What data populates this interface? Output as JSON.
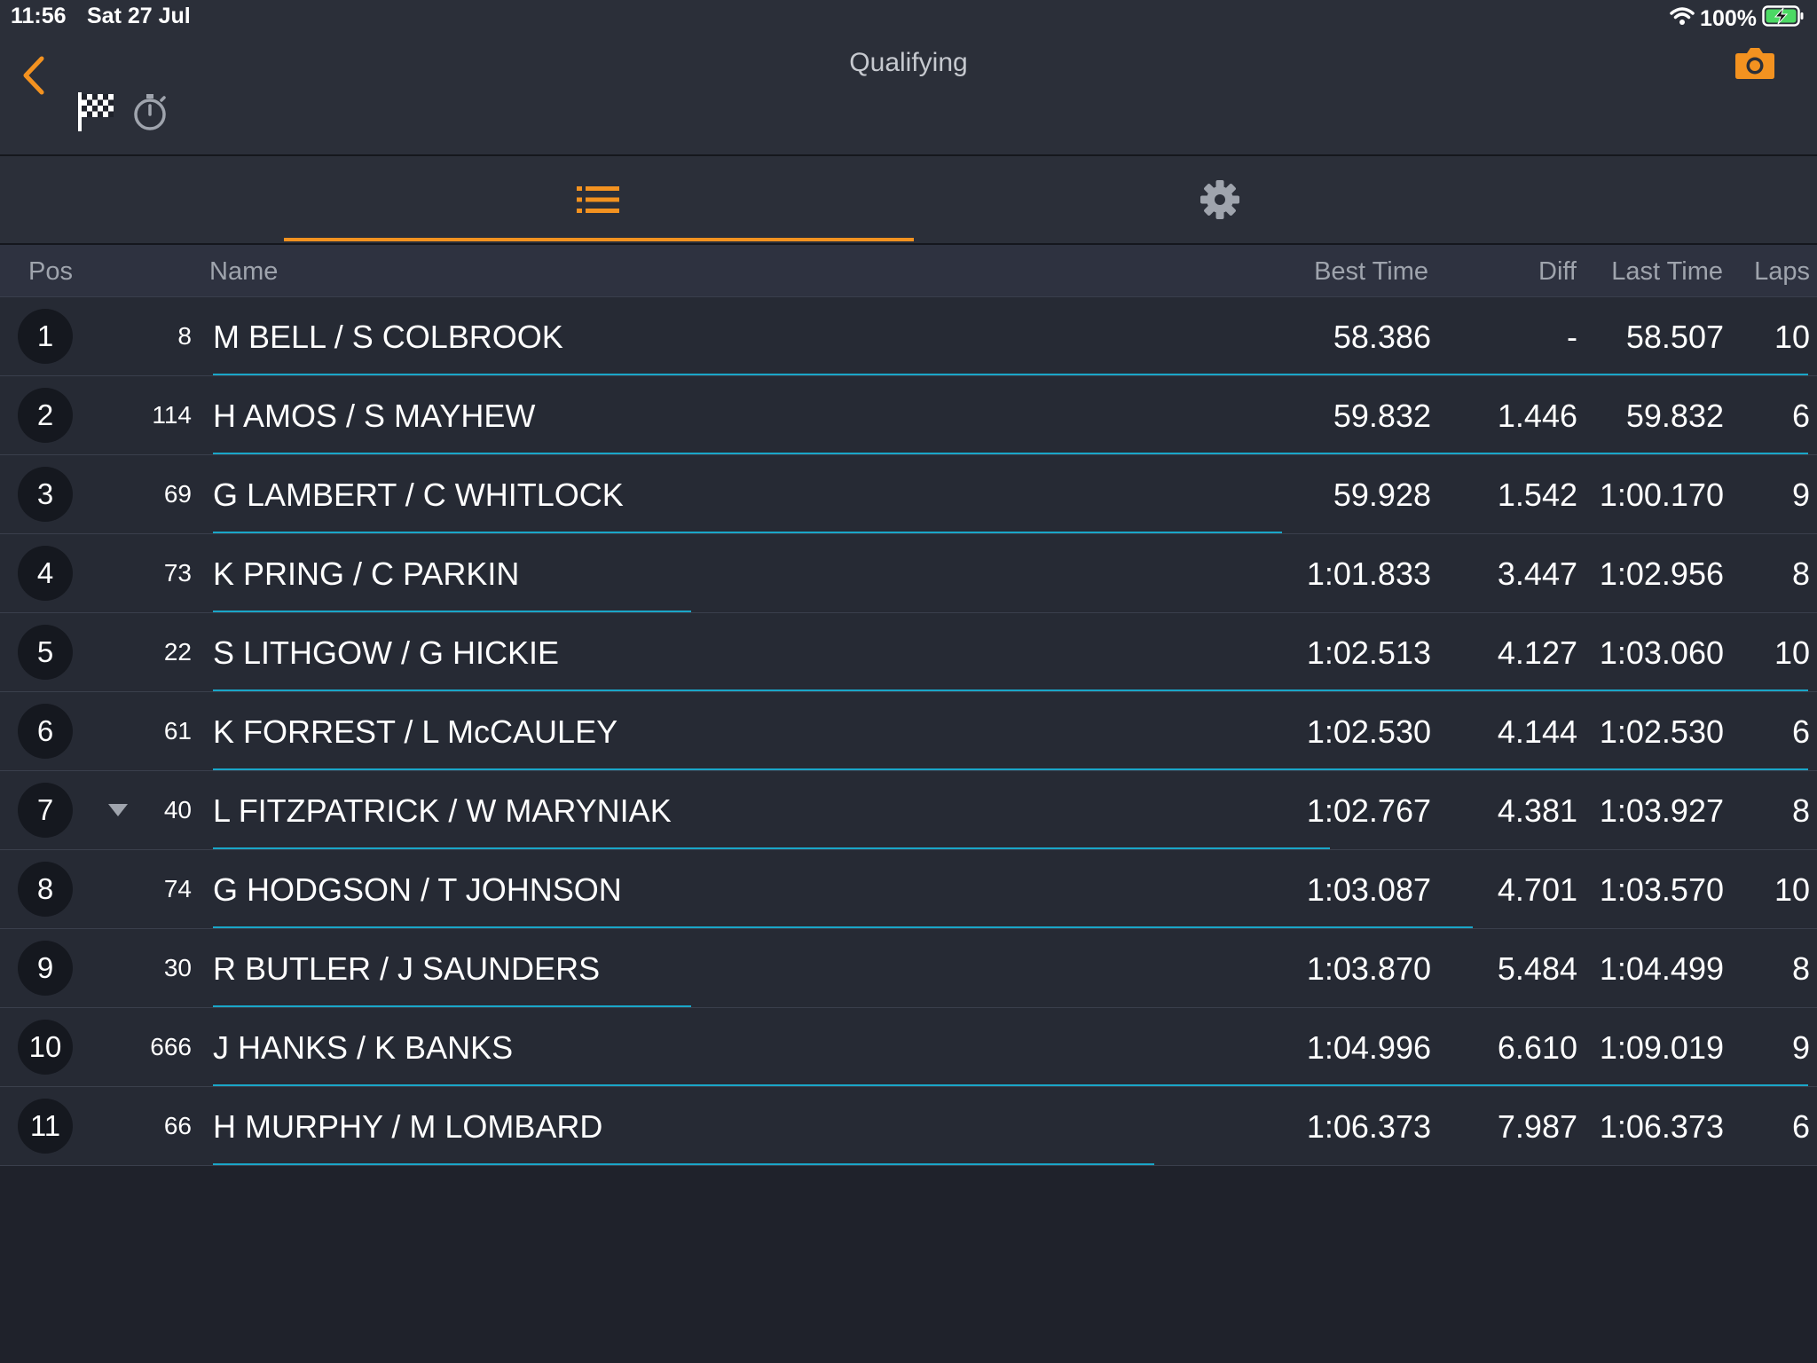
{
  "status_bar": {
    "time": "11:56",
    "date": "Sat 27 Jul",
    "battery": "100%"
  },
  "header": {
    "title": "Qualifying"
  },
  "table": {
    "columns": {
      "pos": "Pos",
      "name": "Name",
      "best_time": "Best Time",
      "diff": "Diff",
      "last_time": "Last Time",
      "laps": "Laps"
    },
    "rows": [
      {
        "pos": "1",
        "car": "8",
        "name": "M BELL / S COLBROOK",
        "best": "58.386",
        "diff": "-",
        "last": "58.507",
        "laps": "10",
        "progress": 1.0,
        "trend": ""
      },
      {
        "pos": "2",
        "car": "114",
        "name": "H AMOS / S MAYHEW",
        "best": "59.832",
        "diff": "1.446",
        "last": "59.832",
        "laps": "6",
        "progress": 1.0,
        "trend": ""
      },
      {
        "pos": "3",
        "car": "69",
        "name": "G LAMBERT / C WHITLOCK",
        "best": "59.928",
        "diff": "1.542",
        "last": "1:00.170",
        "laps": "9",
        "progress": 0.67,
        "trend": ""
      },
      {
        "pos": "4",
        "car": "73",
        "name": "K PRING / C PARKIN",
        "best": "1:01.833",
        "diff": "3.447",
        "last": "1:02.956",
        "laps": "8",
        "progress": 0.3,
        "trend": ""
      },
      {
        "pos": "5",
        "car": "22",
        "name": "S LITHGOW / G HICKIE",
        "best": "1:02.513",
        "diff": "4.127",
        "last": "1:03.060",
        "laps": "10",
        "progress": 1.0,
        "trend": ""
      },
      {
        "pos": "6",
        "car": "61",
        "name": "K FORREST / L McCAULEY",
        "best": "1:02.530",
        "diff": "4.144",
        "last": "1:02.530",
        "laps": "6",
        "progress": 1.0,
        "trend": ""
      },
      {
        "pos": "7",
        "car": "40",
        "name": "L FITZPATRICK / W MARYNIAK",
        "best": "1:02.767",
        "diff": "4.381",
        "last": "1:03.927",
        "laps": "8",
        "progress": 0.7,
        "trend": "down"
      },
      {
        "pos": "8",
        "car": "74",
        "name": "G HODGSON / T JOHNSON",
        "best": "1:03.087",
        "diff": "4.701",
        "last": "1:03.570",
        "laps": "10",
        "progress": 0.79,
        "trend": ""
      },
      {
        "pos": "9",
        "car": "30",
        "name": "R BUTLER / J SAUNDERS",
        "best": "1:03.870",
        "diff": "5.484",
        "last": "1:04.499",
        "laps": "8",
        "progress": 0.3,
        "trend": ""
      },
      {
        "pos": "10",
        "car": "666",
        "name": "J HANKS / K BANKS",
        "best": "1:04.996",
        "diff": "6.610",
        "last": "1:09.019",
        "laps": "9",
        "progress": 1.0,
        "trend": ""
      },
      {
        "pos": "11",
        "car": "66",
        "name": "H MURPHY / M LOMBARD",
        "best": "1:06.373",
        "diff": "7.987",
        "last": "1:06.373",
        "laps": "6",
        "progress": 0.59,
        "trend": ""
      }
    ]
  },
  "colors": {
    "accent": "#f39220",
    "progress": "#1aa6c8",
    "background": "#1f222b",
    "row_background": "#262a34"
  },
  "icons": [
    "back-chevron-icon",
    "checkered-flag-icon",
    "stopwatch-icon",
    "camera-icon",
    "list-icon",
    "gear-icon",
    "wifi-icon",
    "battery-charging-icon",
    "trend-down-icon"
  ]
}
